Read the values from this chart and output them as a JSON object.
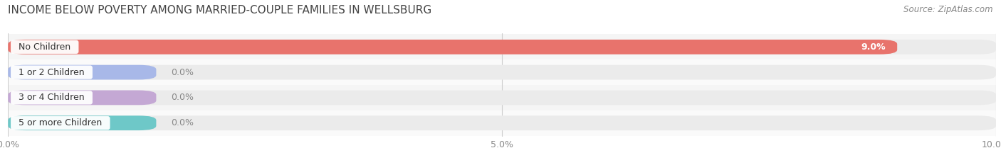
{
  "title": "INCOME BELOW POVERTY AMONG MARRIED-COUPLE FAMILIES IN WELLSBURG",
  "source": "Source: ZipAtlas.com",
  "categories": [
    "No Children",
    "1 or 2 Children",
    "3 or 4 Children",
    "5 or more Children"
  ],
  "values": [
    9.0,
    0.0,
    0.0,
    0.0
  ],
  "bar_colors": [
    "#e8736c",
    "#a8b8e8",
    "#c4a8d4",
    "#6ec8c8"
  ],
  "bar_bg_color": "#ebebeb",
  "xlim": [
    0,
    10.0
  ],
  "xticks": [
    0.0,
    5.0,
    10.0
  ],
  "xticklabels": [
    "0.0%",
    "5.0%",
    "10.0%"
  ],
  "background_color": "#ffffff",
  "bar_height": 0.58,
  "label_fontsize": 9,
  "title_fontsize": 11,
  "value_label_color_inside": "#ffffff",
  "value_label_color_outside": "#888888",
  "grid_color": "#cccccc",
  "row_bg_colors": [
    "#f5f5f5",
    "#fafafa"
  ]
}
